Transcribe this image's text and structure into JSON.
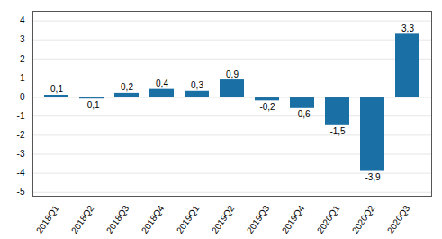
{
  "chart_data": {
    "type": "bar",
    "categories": [
      "2018Q1",
      "2018Q2",
      "2018Q3",
      "2018Q4",
      "2019Q1",
      "2019Q2",
      "2019Q3",
      "2019Q4",
      "2020Q1",
      "2020Q2",
      "2020Q3"
    ],
    "values": [
      0.1,
      -0.1,
      0.2,
      0.4,
      0.3,
      0.9,
      -0.2,
      -0.6,
      -1.5,
      -3.9,
      3.3
    ],
    "value_labels": [
      "0,1",
      "-0,1",
      "0,2",
      "0,4",
      "0,3",
      "0,9",
      "-0,2",
      "-0,6",
      "-1,5",
      "-3,9",
      "3,3"
    ],
    "color": "#1a6fa5",
    "ylim": [
      -5.2,
      4.5
    ],
    "yticks": [
      -5,
      -4,
      -3,
      -2,
      -1,
      0,
      1,
      2,
      3,
      4
    ],
    "grid": true,
    "data_labels": true
  }
}
